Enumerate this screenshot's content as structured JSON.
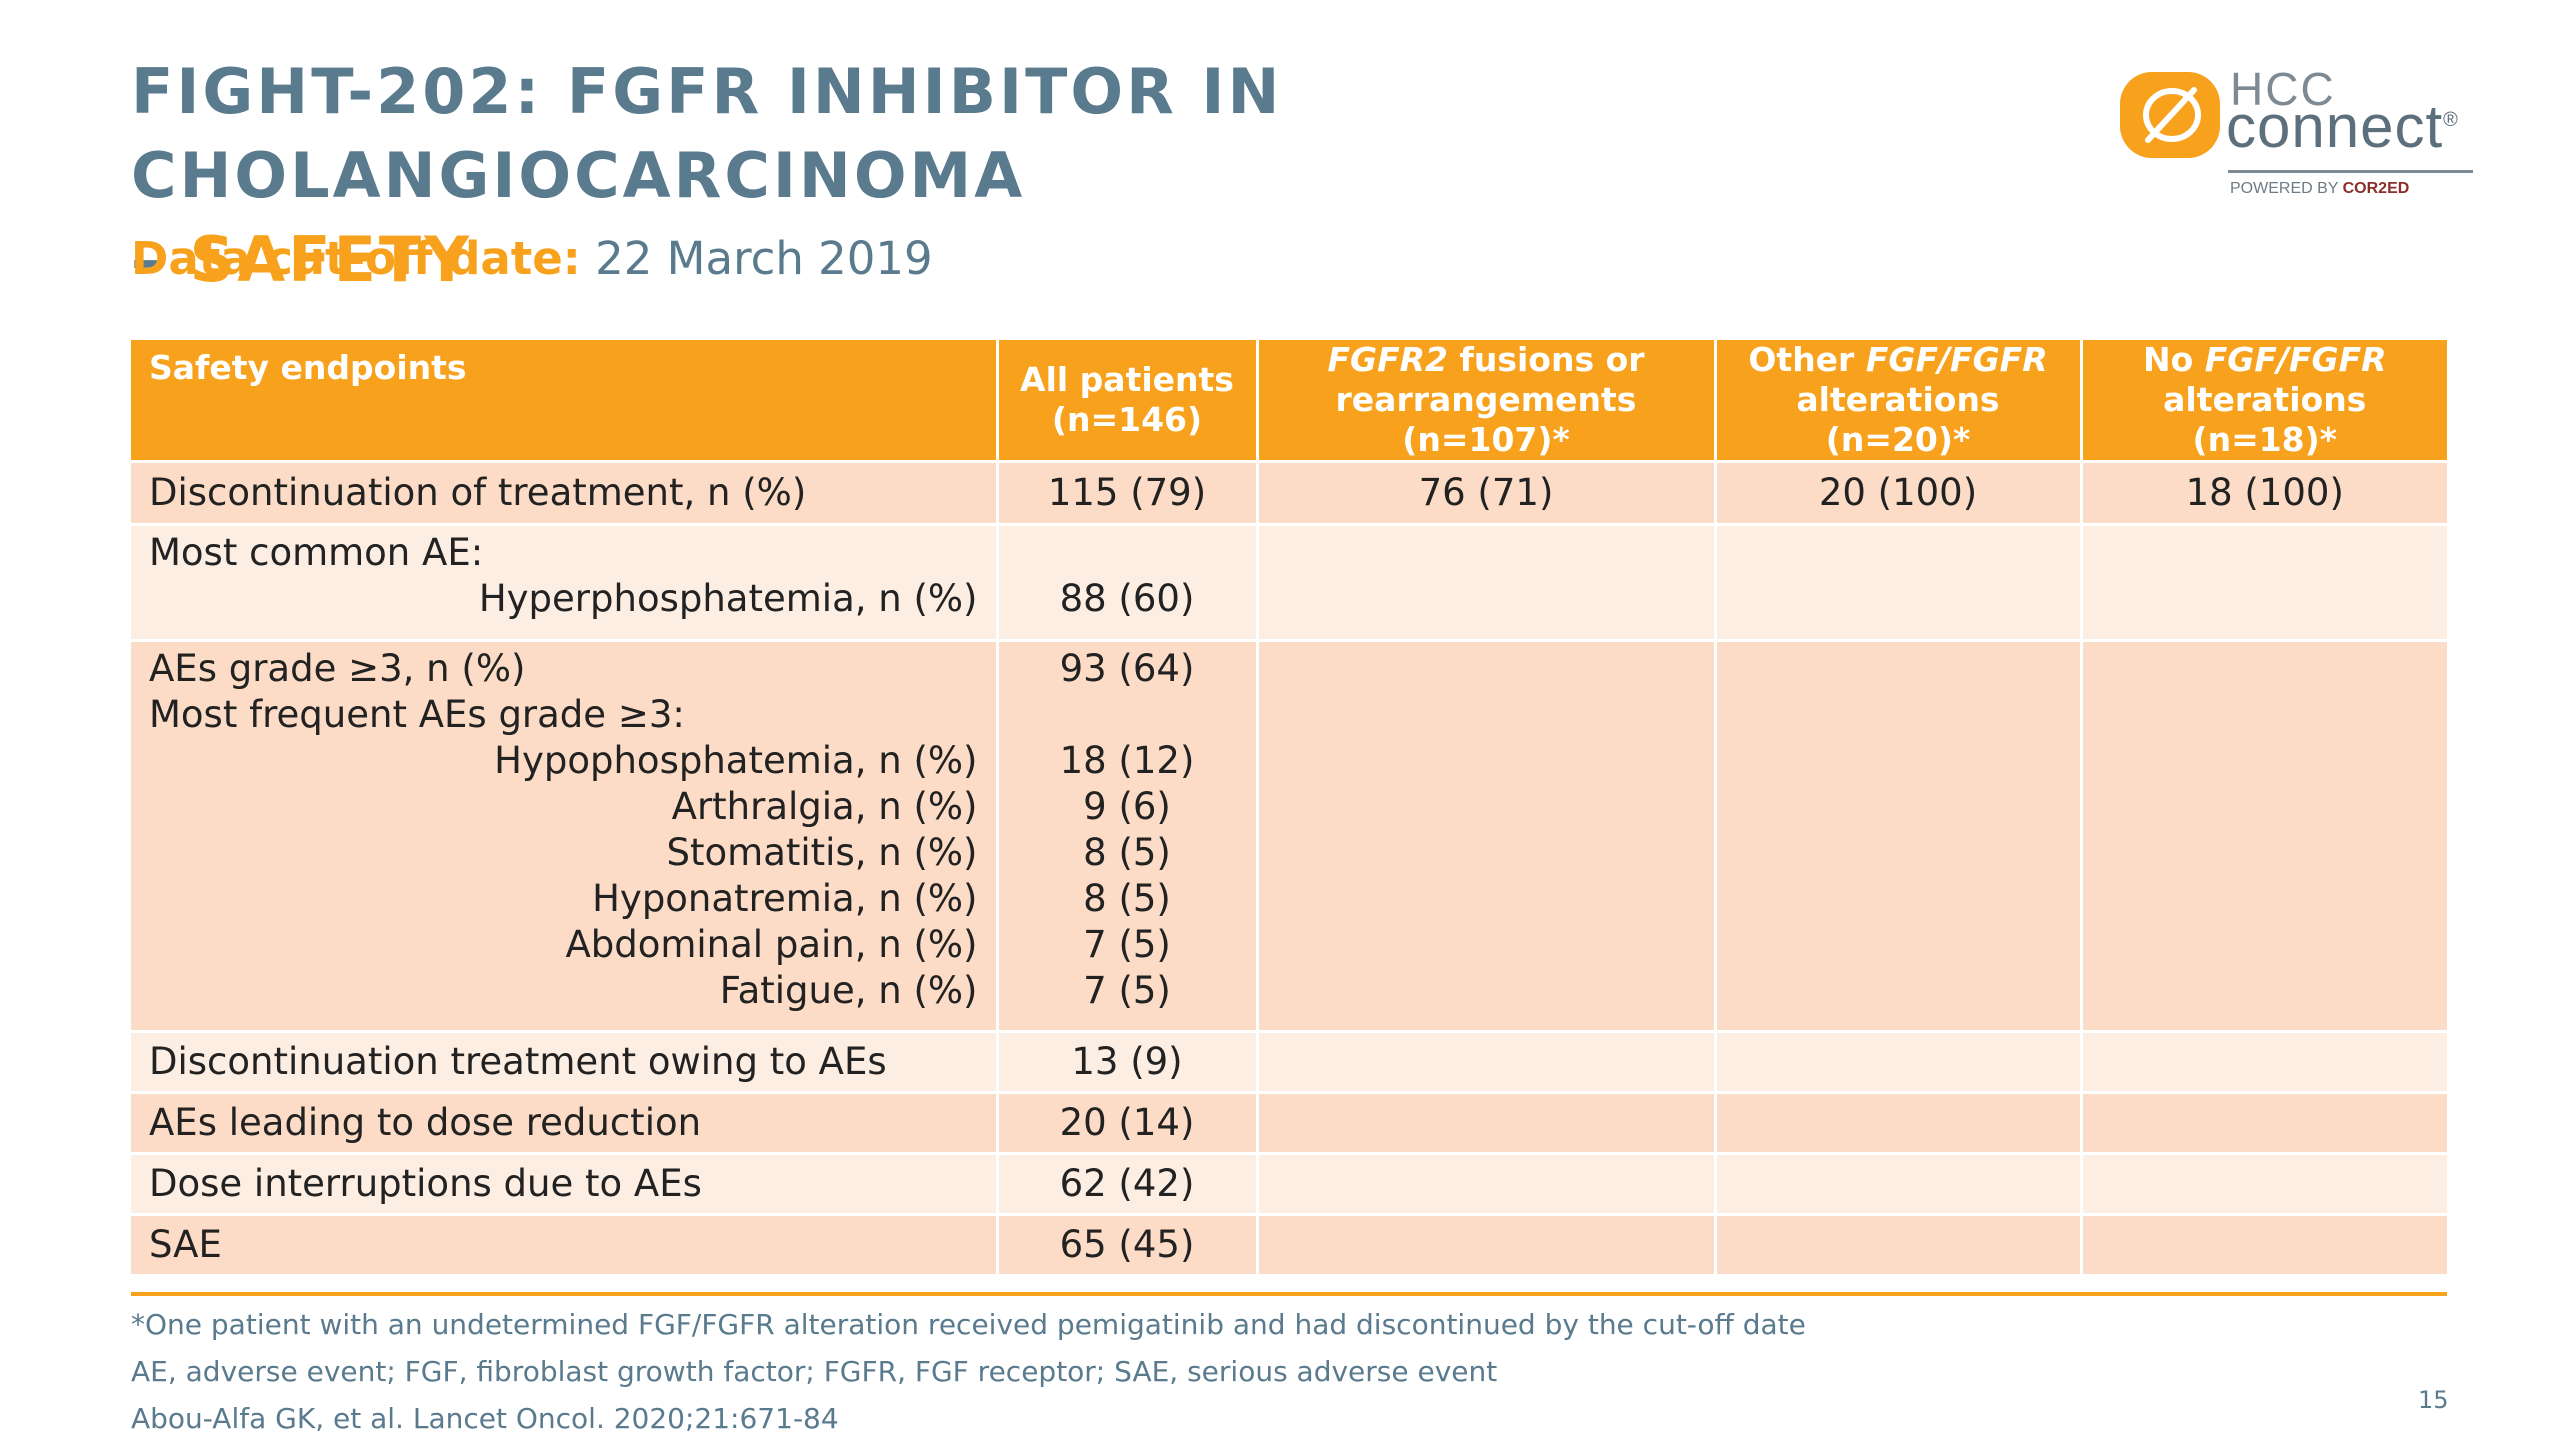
{
  "slide": {
    "title_part1": "FIGHT-202: FGFR INHIBITOR IN CHOLANGIOCARCINOMA",
    "title_part2_dash": "– ",
    "title_part2_accent": "SAFETY",
    "cutoff_label": "Data cut-off date:",
    "cutoff_value": " 22 March 2019",
    "page_number": "15"
  },
  "logo": {
    "hcc": "HCC",
    "connect": "connect",
    "registered": "®",
    "powered_prefix": "POWERED BY ",
    "powered_brand": "COR2ED"
  },
  "table": {
    "headers": {
      "endpoints": "Safety endpoints",
      "all_line1": "All patients",
      "all_line2": "(n=146)",
      "fgfr2_italic": "FGFR2",
      "fgfr2_rest": " fusions or",
      "fgfr2_line2": "rearrangements (n=107)*",
      "other_prefix": "Other ",
      "other_italic": "FGF/FGFR",
      "other_line2": "alterations (n=20)*",
      "no_prefix": "No ",
      "no_italic": "FGF/FGFR",
      "no_line2": "alterations (n=18)*"
    },
    "row_discontinuation": {
      "label": "Discontinuation of treatment, n (%)",
      "all": "115 (79)",
      "fgfr2": "76 (71)",
      "other": "20 (100)",
      "none": "18 (100)"
    },
    "row_common": {
      "label": "Most common AE:",
      "sub_label": "Hyperphosphatemia, n (%)",
      "sub_value": "88 (60)"
    },
    "row_grade3": {
      "label": "AEs grade ≥3, n (%)",
      "value": "93 (64)",
      "sub_heading": "Most frequent AEs grade ≥3:",
      "items": [
        {
          "label": "Hypophosphatemia, n (%)",
          "value": "18 (12)"
        },
        {
          "label": "Arthralgia, n (%)",
          "value": "9 (6)"
        },
        {
          "label": "Stomatitis, n (%)",
          "value": "8 (5)"
        },
        {
          "label": "Hyponatremia, n (%)",
          "value": "8 (5)"
        },
        {
          "label": "Abdominal pain, n (%)",
          "value": "7 (5)"
        },
        {
          "label": "Fatigue, n (%)",
          "value": "7 (5)"
        }
      ]
    },
    "row_disc_ae": {
      "label": "Discontinuation treatment owing to AEs",
      "value": "13 (9)"
    },
    "row_dose_red": {
      "label": "AEs leading to dose reduction",
      "value": "20 (14)"
    },
    "row_dose_int": {
      "label": "Dose interruptions due to AEs",
      "value": "62 (42)"
    },
    "row_sae": {
      "label": "SAE",
      "value": "65 (45)"
    }
  },
  "footnotes": {
    "note1": "*One patient with an undetermined FGF/FGFR alteration received pemigatinib and had discontinued by the cut-off date",
    "note2": "AE, adverse event; FGF, fibroblast growth factor; FGFR, FGF receptor; SAE, serious adverse event",
    "note3": "Abou-Alfa GK, et al. Lancet Oncol. 2020;21:671-84"
  }
}
